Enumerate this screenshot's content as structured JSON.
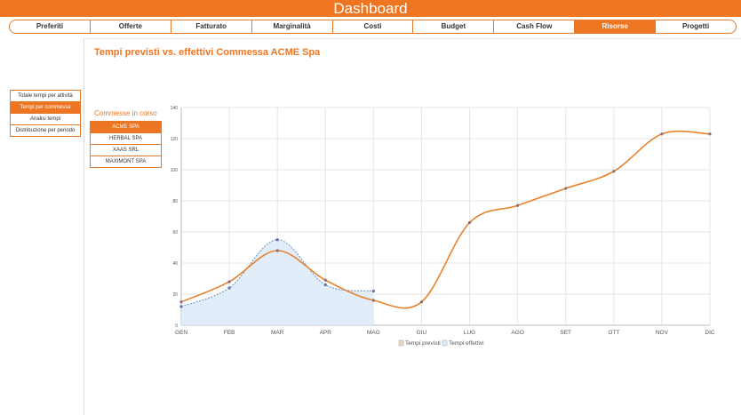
{
  "app": {
    "title": "Dashboard"
  },
  "tabs": [
    {
      "label": "Preferiti",
      "active": false
    },
    {
      "label": "Offerte",
      "active": false
    },
    {
      "label": "Fatturato",
      "active": false
    },
    {
      "label": "Marginalità",
      "active": false
    },
    {
      "label": "Costi",
      "active": false
    },
    {
      "label": "Budget",
      "active": false
    },
    {
      "label": "Cash Flow",
      "active": false
    },
    {
      "label": "Risorse",
      "active": true
    },
    {
      "label": "Progetti",
      "active": false
    }
  ],
  "side_menu": [
    {
      "label": "Totale tempi per attività",
      "active": false
    },
    {
      "label": "Tempi per commessa",
      "active": true
    },
    {
      "label": "Analisi tempi",
      "active": false
    },
    {
      "label": "Distribuzione per periodo",
      "active": false
    }
  ],
  "page_title": "Tempi previsti vs. effettivi Commessa ACME Spa",
  "commesse": {
    "title": "Commesse in corso",
    "items": [
      {
        "label": "ACME SPA",
        "active": true
      },
      {
        "label": "HERBAL SPA",
        "active": false
      },
      {
        "label": "XAAS SRL",
        "active": false
      },
      {
        "label": "MAXIMONT SPA",
        "active": false
      }
    ]
  },
  "colors": {
    "accent": "#ee7623",
    "previsti": "#e8822c",
    "effettivi_line": "#6f8fb8",
    "effettivi_fill": "#dcebf8"
  },
  "chart_data": {
    "type": "line",
    "categories": [
      "GEN",
      "FEB",
      "MAR",
      "APR",
      "MAG",
      "GIU",
      "LUG",
      "AGO",
      "SET",
      "OTT",
      "NOV",
      "DIC"
    ],
    "ylim": [
      0,
      140
    ],
    "yticks": [
      0,
      20,
      40,
      60,
      80,
      100,
      120,
      140
    ],
    "grid": true,
    "legend": "bottom",
    "series": [
      {
        "name": "Tempi previsti",
        "values": [
          15,
          28,
          48,
          29,
          16,
          15,
          66,
          77,
          88,
          99,
          123,
          123
        ]
      },
      {
        "name": "Tempi effettivi",
        "values": [
          12,
          24,
          55,
          26,
          22,
          null,
          null,
          null,
          null,
          null,
          null,
          null
        ]
      }
    ]
  }
}
